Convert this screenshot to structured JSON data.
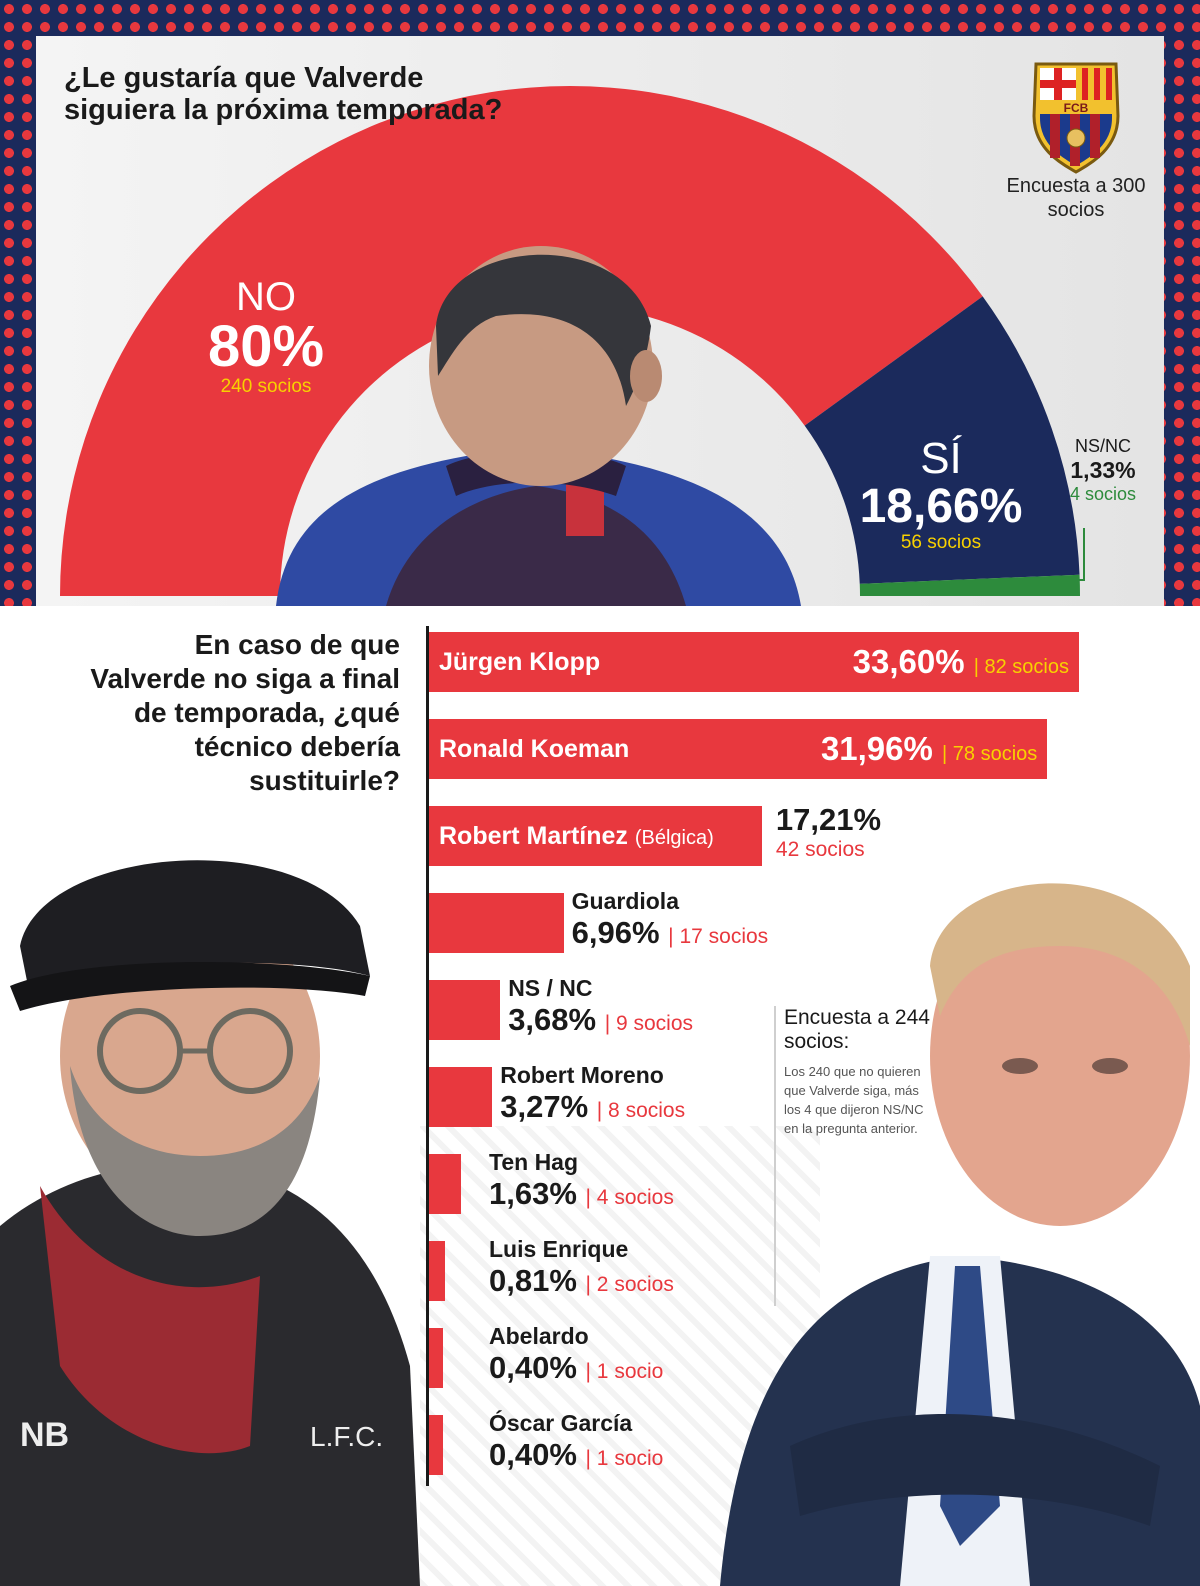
{
  "colors": {
    "red": "#e8383e",
    "navy": "#1b2a5c",
    "green": "#2d8b3c",
    "yellow": "#f8d100"
  },
  "top": {
    "question": "¿Le gustaría que Valverde siguiera la próxima temporada?",
    "crest_letters": "FCB",
    "survey": "Encuesta a 300 socios"
  },
  "chart_data": [
    {
      "type": "pie",
      "title": "¿Le gustaría que Valverde siguiera la próxima temporada?",
      "slices": [
        {
          "label": "NO",
          "value": 80,
          "pct_text": "80%",
          "socios": "240 socios",
          "color": "#e8383e"
        },
        {
          "label": "SÍ",
          "value": 18.66,
          "pct_text": "18,66%",
          "socios": "56 socios",
          "color": "#1b2a5c"
        },
        {
          "label": "NS/NC",
          "value": 1.33,
          "pct_text": "1,33%",
          "socios": "4 socios",
          "color": "#2d8b3c"
        }
      ]
    },
    {
      "type": "bar",
      "title": "En caso de que Valverde no siga a final de temporada, ¿qué técnico debería sustituirle?",
      "xlim": [
        0,
        33.6
      ],
      "bars": [
        {
          "name": "Jürgen Klopp",
          "value": 33.6,
          "pct_text": "33,60%",
          "socios": "| 82 socios"
        },
        {
          "name": "Ronald Koeman",
          "value": 31.96,
          "pct_text": "31,96%",
          "socios": "| 78 socios"
        },
        {
          "name": "Robert Martínez",
          "name_extra": "(Bélgica)",
          "value": 17.21,
          "pct_text": "17,21%",
          "socios": "42 socios"
        },
        {
          "name": "Guardiola",
          "value": 6.96,
          "pct_text": "6,96%",
          "socios": "| 17 socios"
        },
        {
          "name": "NS / NC",
          "value": 3.68,
          "pct_text": "3,68%",
          "socios": "| 9 socios"
        },
        {
          "name": "Robert Moreno",
          "value": 3.27,
          "pct_text": "3,27%",
          "socios": "| 8 socios"
        },
        {
          "name": "Ten Hag",
          "value": 1.63,
          "pct_text": "1,63%",
          "socios": "| 4 socios"
        },
        {
          "name": "Luis Enrique",
          "value": 0.81,
          "pct_text": "0,81%",
          "socios": "| 2 socios"
        },
        {
          "name": "Abelardo",
          "value": 0.4,
          "pct_text": "0,40%",
          "socios": "| 1 socio"
        },
        {
          "name": "Óscar García",
          "value": 0.4,
          "pct_text": "0,40%",
          "socios": "| 1 socio"
        }
      ]
    }
  ],
  "bottom": {
    "question": "En caso de que Valverde no siga a final de temporada, ¿qué técnico debería sustituirle?",
    "note_title": "Encuesta a 244 socios:",
    "note_body": "Los 240 que no quieren que Valverde siga, más los 4 que dijeron NS/NC en la pregunta anterior."
  }
}
